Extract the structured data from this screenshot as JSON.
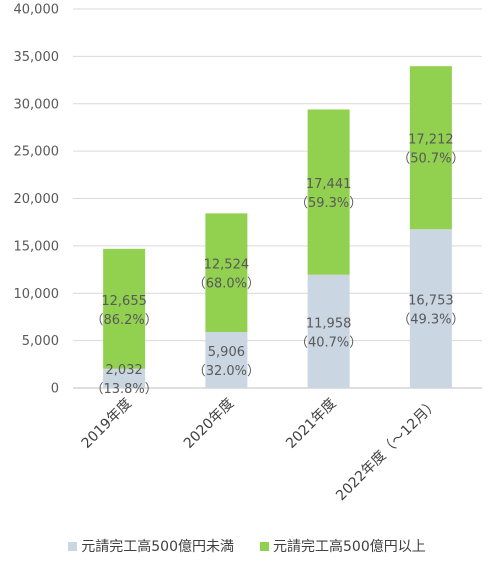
{
  "chart_data": {
    "type": "bar",
    "stacked": true,
    "categories": [
      "2019年度",
      "2020年度",
      "2021年度",
      "2022年度（～12月）"
    ],
    "series": [
      {
        "name": "元請完工高500億円未満",
        "color": "#cad6e2",
        "values": [
          2032,
          5906,
          11958,
          16753
        ],
        "value_labels": [
          "2,032",
          "5,906",
          "11,958",
          "16,753"
        ],
        "pct_labels": [
          "（13.8%）",
          "（32.0%）",
          "（40.7%）",
          "（49.3%）"
        ]
      },
      {
        "name": "元請完工高500億円以上",
        "color": "#92d050",
        "values": [
          12655,
          12524,
          17441,
          17212
        ],
        "value_labels": [
          "12,655",
          "12,524",
          "17,441",
          "17,212"
        ],
        "pct_labels": [
          "（86.2%）",
          "（68.0%）",
          "（59.3%）",
          "（50.7%）"
        ]
      }
    ],
    "ylim": [
      0,
      40000
    ],
    "yticks": [
      0,
      5000,
      10000,
      15000,
      20000,
      25000,
      30000,
      35000,
      40000
    ],
    "ytick_labels": [
      "0",
      "5,000",
      "10,000",
      "15,000",
      "20,000",
      "25,000",
      "30,000",
      "35,000",
      "40,000"
    ],
    "grid": true,
    "legend_position": "bottom"
  }
}
